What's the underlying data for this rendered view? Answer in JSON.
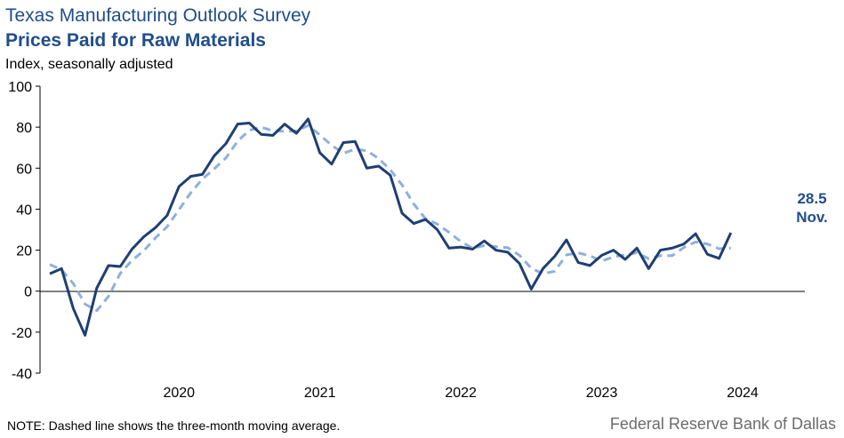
{
  "title": "Texas Manufacturing Outlook Survey",
  "subtitle_title": "Prices Paid for Raw Materials",
  "units_label": "Index, seasonally adjusted",
  "note": "NOTE: Dashed line shows the three-month  moving average.",
  "source": "Federal Reserve Bank of Dallas",
  "colors": {
    "series": "#1f3f73",
    "moving_average": "#8fb0dc",
    "title": "#1f4e8c",
    "axis": "#000000"
  },
  "chart_data": {
    "type": "line",
    "x_start": "2019-07",
    "x_end": "2024-11",
    "ylim": [
      -40,
      100
    ],
    "yticks": [
      -40,
      -20,
      0,
      20,
      40,
      60,
      80,
      100
    ],
    "xticks": [
      {
        "label": "2020",
        "date": "2020-06"
      },
      {
        "label": "2021",
        "date": "2021-06"
      },
      {
        "label": "2022",
        "date": "2022-06"
      },
      {
        "label": "2023",
        "date": "2023-06"
      },
      {
        "label": "2024",
        "date": "2024-06"
      }
    ],
    "series": [
      {
        "style": "solid",
        "values": [
          8.5,
          11.0,
          -8.5,
          -21.5,
          1.5,
          12.5,
          12.0,
          20.5,
          26.5,
          31.0,
          37.0,
          51.0,
          56.0,
          57.0,
          66.0,
          72.0,
          81.5,
          82.0,
          76.5,
          76.0,
          81.5,
          77.0,
          84.0,
          67.5,
          62.0,
          72.5,
          73.0,
          60.0,
          61.0,
          56.5,
          38.0,
          33.0,
          35.0,
          30.0,
          21.0,
          21.5,
          20.5,
          24.5,
          20.0,
          19.0,
          13.5,
          1.0,
          11.0,
          17.0,
          25.0,
          14.0,
          12.5,
          17.5,
          20.0,
          15.5,
          21.0,
          11.0,
          20.0,
          21.0,
          23.0,
          28.0,
          18.0,
          16.0,
          28.5
        ]
      },
      {
        "style": "dashed",
        "values": [
          13.0,
          10.5,
          3.7,
          -6.3,
          -9.5,
          -2.5,
          8.7,
          15.0,
          19.7,
          26.0,
          31.5,
          39.7,
          48.0,
          54.7,
          59.7,
          65.0,
          73.2,
          78.5,
          80.0,
          78.2,
          78.0,
          78.2,
          80.8,
          76.2,
          71.2,
          67.3,
          69.2,
          68.5,
          64.7,
          59.2,
          51.8,
          42.5,
          35.3,
          32.7,
          28.7,
          24.2,
          21.0,
          22.2,
          21.7,
          21.2,
          17.5,
          11.2,
          8.5,
          9.7,
          17.7,
          18.7,
          17.2,
          14.7,
          16.7,
          17.7,
          18.8,
          15.8,
          17.3,
          17.3,
          21.3,
          24.0,
          23.0,
          20.7,
          21.0
        ]
      }
    ],
    "annotation": {
      "value": "28.5",
      "month": "Nov."
    }
  }
}
